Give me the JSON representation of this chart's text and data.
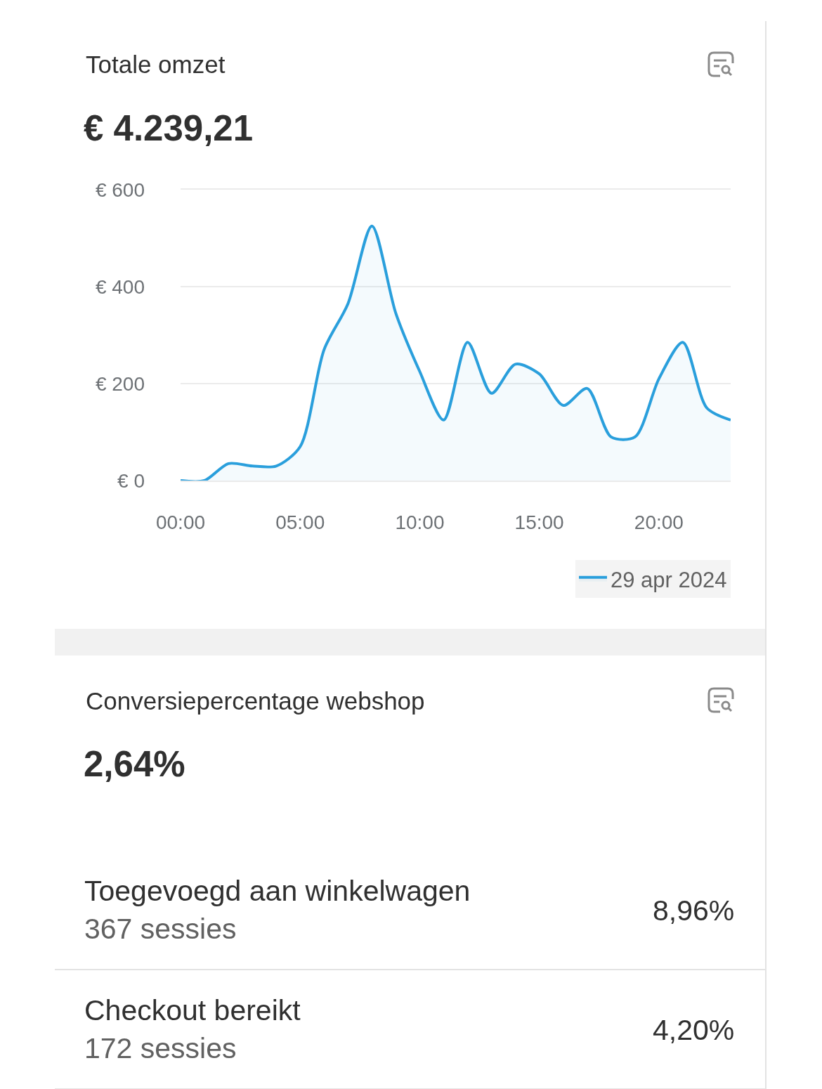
{
  "chart_data": [
    {
      "type": "area",
      "title": "Totale omzet",
      "subtitle": "€ 4.239,21",
      "x": [
        0,
        1,
        2,
        3,
        4,
        5,
        6,
        7,
        8,
        9,
        10,
        11,
        12,
        13,
        14,
        15,
        16,
        17,
        18,
        19,
        20,
        21,
        22,
        23
      ],
      "series": [
        {
          "name": "29 apr 2024",
          "color": "#2a9fdc",
          "values": [
            0,
            0,
            35,
            30,
            30,
            70,
            270,
            365,
            525,
            345,
            225,
            125,
            285,
            180,
            240,
            220,
            155,
            190,
            90,
            90,
            210,
            285,
            150,
            125
          ]
        }
      ],
      "xlim": [
        0,
        23
      ],
      "xticks": [
        {
          "value": 0,
          "label": "00:00"
        },
        {
          "value": 5,
          "label": "05:00"
        },
        {
          "value": 10,
          "label": "10:00"
        },
        {
          "value": 15,
          "label": "15:00"
        },
        {
          "value": 20,
          "label": "20:00"
        }
      ],
      "ylim": [
        0,
        600
      ],
      "yticks": [
        {
          "value": 0,
          "label": "€ 0"
        },
        {
          "value": 200,
          "label": "€ 200"
        },
        {
          "value": 400,
          "label": "€ 400"
        },
        {
          "value": 600,
          "label": "€ 600"
        }
      ],
      "grid": "y",
      "legend": "bottom right"
    },
    {
      "type": "other",
      "title": "Conversiepercentage webshop",
      "subtitle": "2,64%",
      "annotations": [
        "Toegevoegd aan winkelwagen",
        "367 sessies",
        "8,96%",
        "Checkout bereikt",
        "172 sessies",
        "4,20%"
      ]
    }
  ]
}
